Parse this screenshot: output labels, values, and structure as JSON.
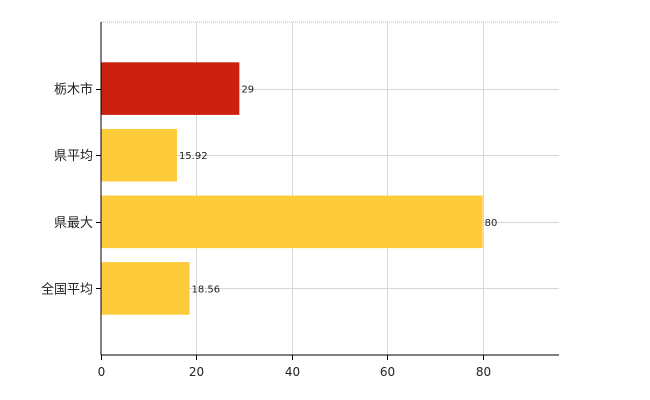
{
  "chart_data": {
    "type": "bar",
    "orientation": "horizontal",
    "categories": [
      "栃木市",
      "県平均",
      "県最大",
      "全国平均"
    ],
    "values": [
      29,
      15.92,
      80,
      18.56
    ],
    "data_labels": [
      "29",
      "15.92",
      "80",
      "18.56"
    ],
    "colors": [
      "#cc2011",
      "#fecc3a",
      "#fecc3a",
      "#fecc3a"
    ],
    "xlim": [
      0,
      96
    ],
    "xticks": [
      0,
      20,
      40,
      60,
      80
    ],
    "title": "",
    "xlabel": "",
    "ylabel": "",
    "grid": true,
    "legend": "none"
  }
}
